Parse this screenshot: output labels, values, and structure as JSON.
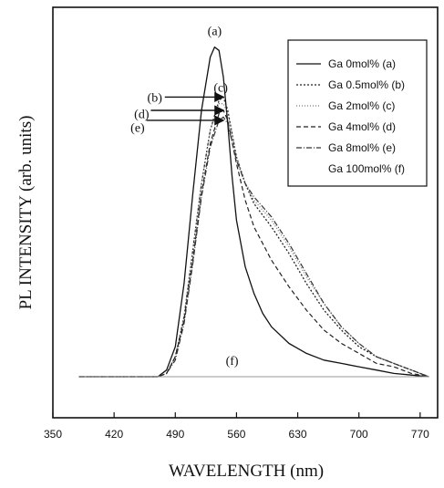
{
  "chart_data": {
    "type": "line",
    "title": "",
    "xlabel": "WAVELENGTH (nm)",
    "ylabel": "PL INTENSITY (arb. units)",
    "xlim": [
      350,
      790
    ],
    "ylim": [
      0,
      1.08
    ],
    "xticks": [
      350,
      420,
      490,
      560,
      630,
      700,
      770
    ],
    "yticks_shown": false,
    "grid": false,
    "legend_position": "top-right",
    "series": [
      {
        "name": "Ga 0mol% (a)",
        "style": "solid",
        "x": [
          380,
          470,
          480,
          490,
          500,
          510,
          520,
          530,
          535,
          540,
          545,
          550,
          555,
          560,
          570,
          580,
          590,
          600,
          620,
          640,
          660,
          680,
          700,
          720,
          740,
          760,
          780
        ],
        "y": [
          0.0,
          0.0,
          0.02,
          0.09,
          0.28,
          0.55,
          0.8,
          0.96,
          0.99,
          0.98,
          0.9,
          0.76,
          0.6,
          0.47,
          0.33,
          0.25,
          0.19,
          0.15,
          0.1,
          0.07,
          0.05,
          0.04,
          0.03,
          0.02,
          0.01,
          0.005,
          0.0
        ]
      },
      {
        "name": "Ga 0.5mol% (b)",
        "style": "dotted",
        "x": [
          380,
          470,
          480,
          490,
          500,
          510,
          520,
          530,
          540,
          545,
          550,
          560,
          570,
          580,
          600,
          620,
          640,
          660,
          680,
          700,
          720,
          740,
          760,
          780
        ],
        "y": [
          0.0,
          0.0,
          0.01,
          0.06,
          0.18,
          0.38,
          0.58,
          0.74,
          0.83,
          0.84,
          0.8,
          0.66,
          0.58,
          0.52,
          0.45,
          0.37,
          0.28,
          0.2,
          0.14,
          0.09,
          0.06,
          0.04,
          0.02,
          0.0
        ]
      },
      {
        "name": "Ga 2mol% (c)",
        "style": "dotted-light",
        "x": [
          380,
          470,
          480,
          490,
          500,
          510,
          520,
          530,
          540,
          545,
          550,
          560,
          570,
          580,
          600,
          620,
          640,
          660,
          680,
          700,
          720,
          740,
          760,
          780
        ],
        "y": [
          0.0,
          0.0,
          0.01,
          0.06,
          0.18,
          0.38,
          0.58,
          0.74,
          0.82,
          0.82,
          0.79,
          0.66,
          0.58,
          0.53,
          0.47,
          0.39,
          0.3,
          0.22,
          0.15,
          0.1,
          0.06,
          0.04,
          0.02,
          0.0
        ]
      },
      {
        "name": "Ga 4mol% (d)",
        "style": "dashed",
        "x": [
          380,
          470,
          480,
          490,
          500,
          510,
          520,
          530,
          540,
          545,
          550,
          560,
          570,
          580,
          600,
          620,
          640,
          660,
          680,
          700,
          720,
          740,
          760,
          780
        ],
        "y": [
          0.0,
          0.0,
          0.01,
          0.06,
          0.17,
          0.35,
          0.55,
          0.7,
          0.79,
          0.8,
          0.77,
          0.64,
          0.53,
          0.45,
          0.35,
          0.27,
          0.2,
          0.14,
          0.1,
          0.07,
          0.04,
          0.03,
          0.01,
          0.0
        ]
      },
      {
        "name": "Ga 8mol% (e)",
        "style": "dash-dot",
        "x": [
          380,
          470,
          480,
          490,
          500,
          510,
          520,
          530,
          540,
          545,
          550,
          560,
          570,
          580,
          600,
          620,
          640,
          660,
          680,
          700,
          720,
          740,
          760,
          780
        ],
        "y": [
          0.0,
          0.0,
          0.01,
          0.05,
          0.16,
          0.34,
          0.54,
          0.69,
          0.77,
          0.78,
          0.76,
          0.65,
          0.58,
          0.54,
          0.48,
          0.4,
          0.31,
          0.22,
          0.15,
          0.1,
          0.06,
          0.04,
          0.02,
          0.0
        ]
      },
      {
        "name": "Ga 100mol% (f)",
        "style": "faint",
        "x": [
          380,
          780
        ],
        "y": [
          0.0,
          0.0
        ]
      }
    ],
    "annotations": [
      {
        "text": "(a)",
        "x": 535,
        "y": 1.04
      },
      {
        "text": "(c)",
        "x": 542,
        "y": 0.87
      },
      {
        "text": "(b)",
        "x": 475,
        "y": 0.84
      },
      {
        "text": "(d)",
        "x": 460,
        "y": 0.79
      },
      {
        "text": "(e)",
        "x": 455,
        "y": 0.75
      },
      {
        "text": "(f)",
        "x": 555,
        "y": 0.05
      }
    ],
    "arrows": [
      {
        "label": "(b)",
        "x_from": 545,
        "x_to": 478,
        "y": 0.84
      },
      {
        "label": "(d)",
        "x_from": 545,
        "x_to": 462,
        "y": 0.8
      },
      {
        "label": "(e)",
        "x_from": 545,
        "x_to": 457,
        "y": 0.77
      }
    ]
  }
}
